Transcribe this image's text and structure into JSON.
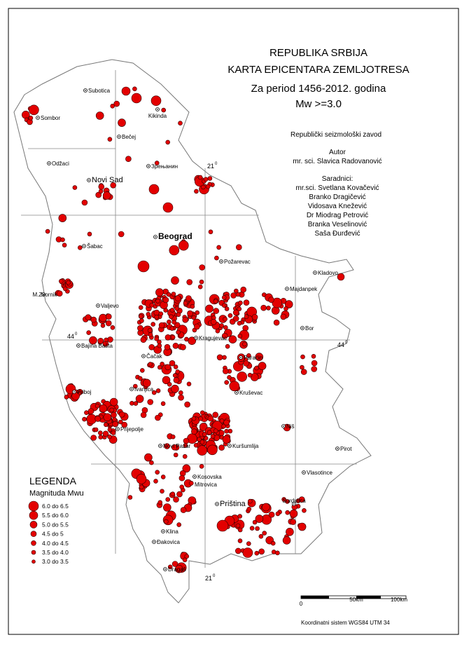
{
  "title": [
    "REPUBLIKA SRBIJA",
    "KARTA EPICENTARA ZEMLJOTRESA",
    "Za period 1456-2012. godina",
    "Mw >=3.0"
  ],
  "credits": {
    "institute": "Republički seizmološki zavod",
    "author_heading": "Autor",
    "author": "mr. sci. Slavica Radovanović",
    "collaborators_heading": "Saradnici:",
    "collaborators": [
      "mr.sci. Svetlana Kovačević",
      "Branko Dragičević",
      "Vidosava Knežević",
      "Dr Miodrag Petrović",
      "Branka Veselinović",
      "Saša Đurđević"
    ]
  },
  "cities": [
    "Subotica",
    "Sombor",
    "Kikinda",
    "Bečej",
    "Odžaci",
    "Зрењанин",
    "Novi Sad",
    "Beograd",
    "Šabac",
    "Požarevac",
    "Kladovo",
    "Majdanpek",
    "M.Zvornik",
    "Valjevo",
    "Kragujevac",
    "Bor",
    "Bajina Bašta",
    "Čačak",
    "Paraćin",
    "Ivanjica",
    "Kruševac",
    "Priboj",
    "Prijepolje",
    "Niš",
    "Pirot",
    "Novi Pazar",
    "Kuršumlija",
    "Vlasotince",
    "Kosovska",
    "Mitrovica",
    "Priština",
    "Surdulica",
    "Klina",
    "Đakovica",
    "Dragaš"
  ],
  "grid_labels": [
    {
      "text": "21",
      "sup": "0"
    },
    {
      "text": "44",
      "sup": "0"
    },
    {
      "text": "44",
      "sup": "0"
    },
    {
      "text": "21",
      "sup": "0"
    }
  ],
  "legend": {
    "title": "LEGENDA",
    "subtitle": "Magnituda Mwu",
    "rows": [
      "6.0  do  6.5",
      "5.5  do  6.0",
      "5.0  do  5.5",
      "4.5  do  5",
      "4.0  do  4.5",
      "3.5  do  4.0",
      "3.0  do  3.5"
    ]
  },
  "scale": {
    "labels": [
      "0",
      "50km",
      "100km"
    ],
    "note": "Koordinatni sistem WGS84 UTM 34"
  }
}
